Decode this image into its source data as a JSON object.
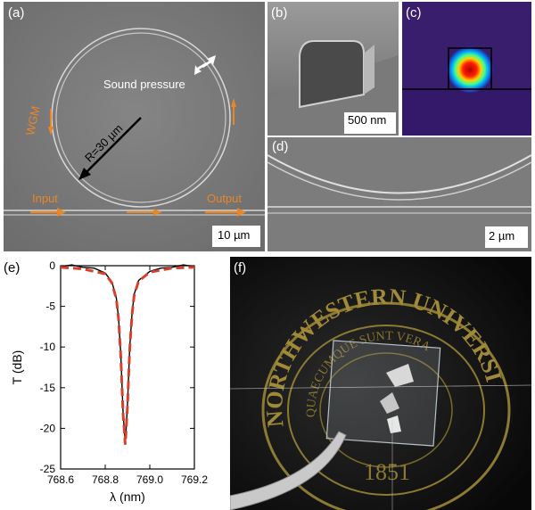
{
  "panels": {
    "a": {
      "label": "(a)",
      "sound_pressure": "Sound pressure",
      "wgm": "WGM",
      "radius": "R=30 µm",
      "input": "Input",
      "output": "Output",
      "scalebar": "10 µm"
    },
    "b": {
      "label": "(b)",
      "scalebar": "500 nm"
    },
    "c": {
      "label": "(c)"
    },
    "d": {
      "label": "(d)",
      "scalebar": "2 µm"
    },
    "e": {
      "label": "(e)"
    },
    "f": {
      "label": "(f)"
    }
  },
  "colors": {
    "sem_background": "#7c7c7c",
    "orange_annotation": "#e8862a",
    "fit_curve": "#d8402c",
    "data_curve": "#000000",
    "mode_background": "#3a1e6e"
  },
  "chart_data": {
    "type": "line",
    "xlabel": "λ (nm)",
    "ylabel": "T (dB)",
    "xlim": [
      768.6,
      769.2
    ],
    "ylim": [
      -25,
      0
    ],
    "xticks": [
      "768.6",
      "768.8",
      "769.0",
      "769.2"
    ],
    "yticks": [
      "0",
      "-5",
      "-10",
      "-15",
      "-20",
      "-25"
    ],
    "series": [
      {
        "style": "solid-black",
        "x": [
          768.6,
          768.65,
          768.7,
          768.75,
          768.8,
          768.83,
          768.85,
          768.86,
          768.87,
          768.88,
          768.89,
          768.9,
          768.91,
          768.92,
          768.93,
          768.95,
          769.0,
          769.05,
          769.1,
          769.15,
          769.2
        ],
        "y": [
          -0.1,
          0.1,
          -0.2,
          -0.3,
          -0.9,
          -2.0,
          -4.0,
          -6.5,
          -11.0,
          -18.0,
          -22.0,
          -17.0,
          -10.0,
          -6.0,
          -3.5,
          -1.8,
          -0.7,
          -0.3,
          -0.2,
          0.1,
          -0.1
        ]
      },
      {
        "style": "dashed-red",
        "x": [
          768.6,
          768.7,
          768.8,
          768.83,
          768.85,
          768.86,
          768.87,
          768.88,
          768.89,
          768.9,
          768.91,
          768.92,
          768.93,
          768.95,
          769.0,
          769.1,
          769.2
        ],
        "y": [
          -0.2,
          -0.4,
          -1.0,
          -2.1,
          -4.1,
          -6.6,
          -11.2,
          -18.2,
          -22.0,
          -17.2,
          -10.2,
          -6.1,
          -3.6,
          -1.9,
          -0.8,
          -0.3,
          -0.2
        ]
      }
    ]
  }
}
